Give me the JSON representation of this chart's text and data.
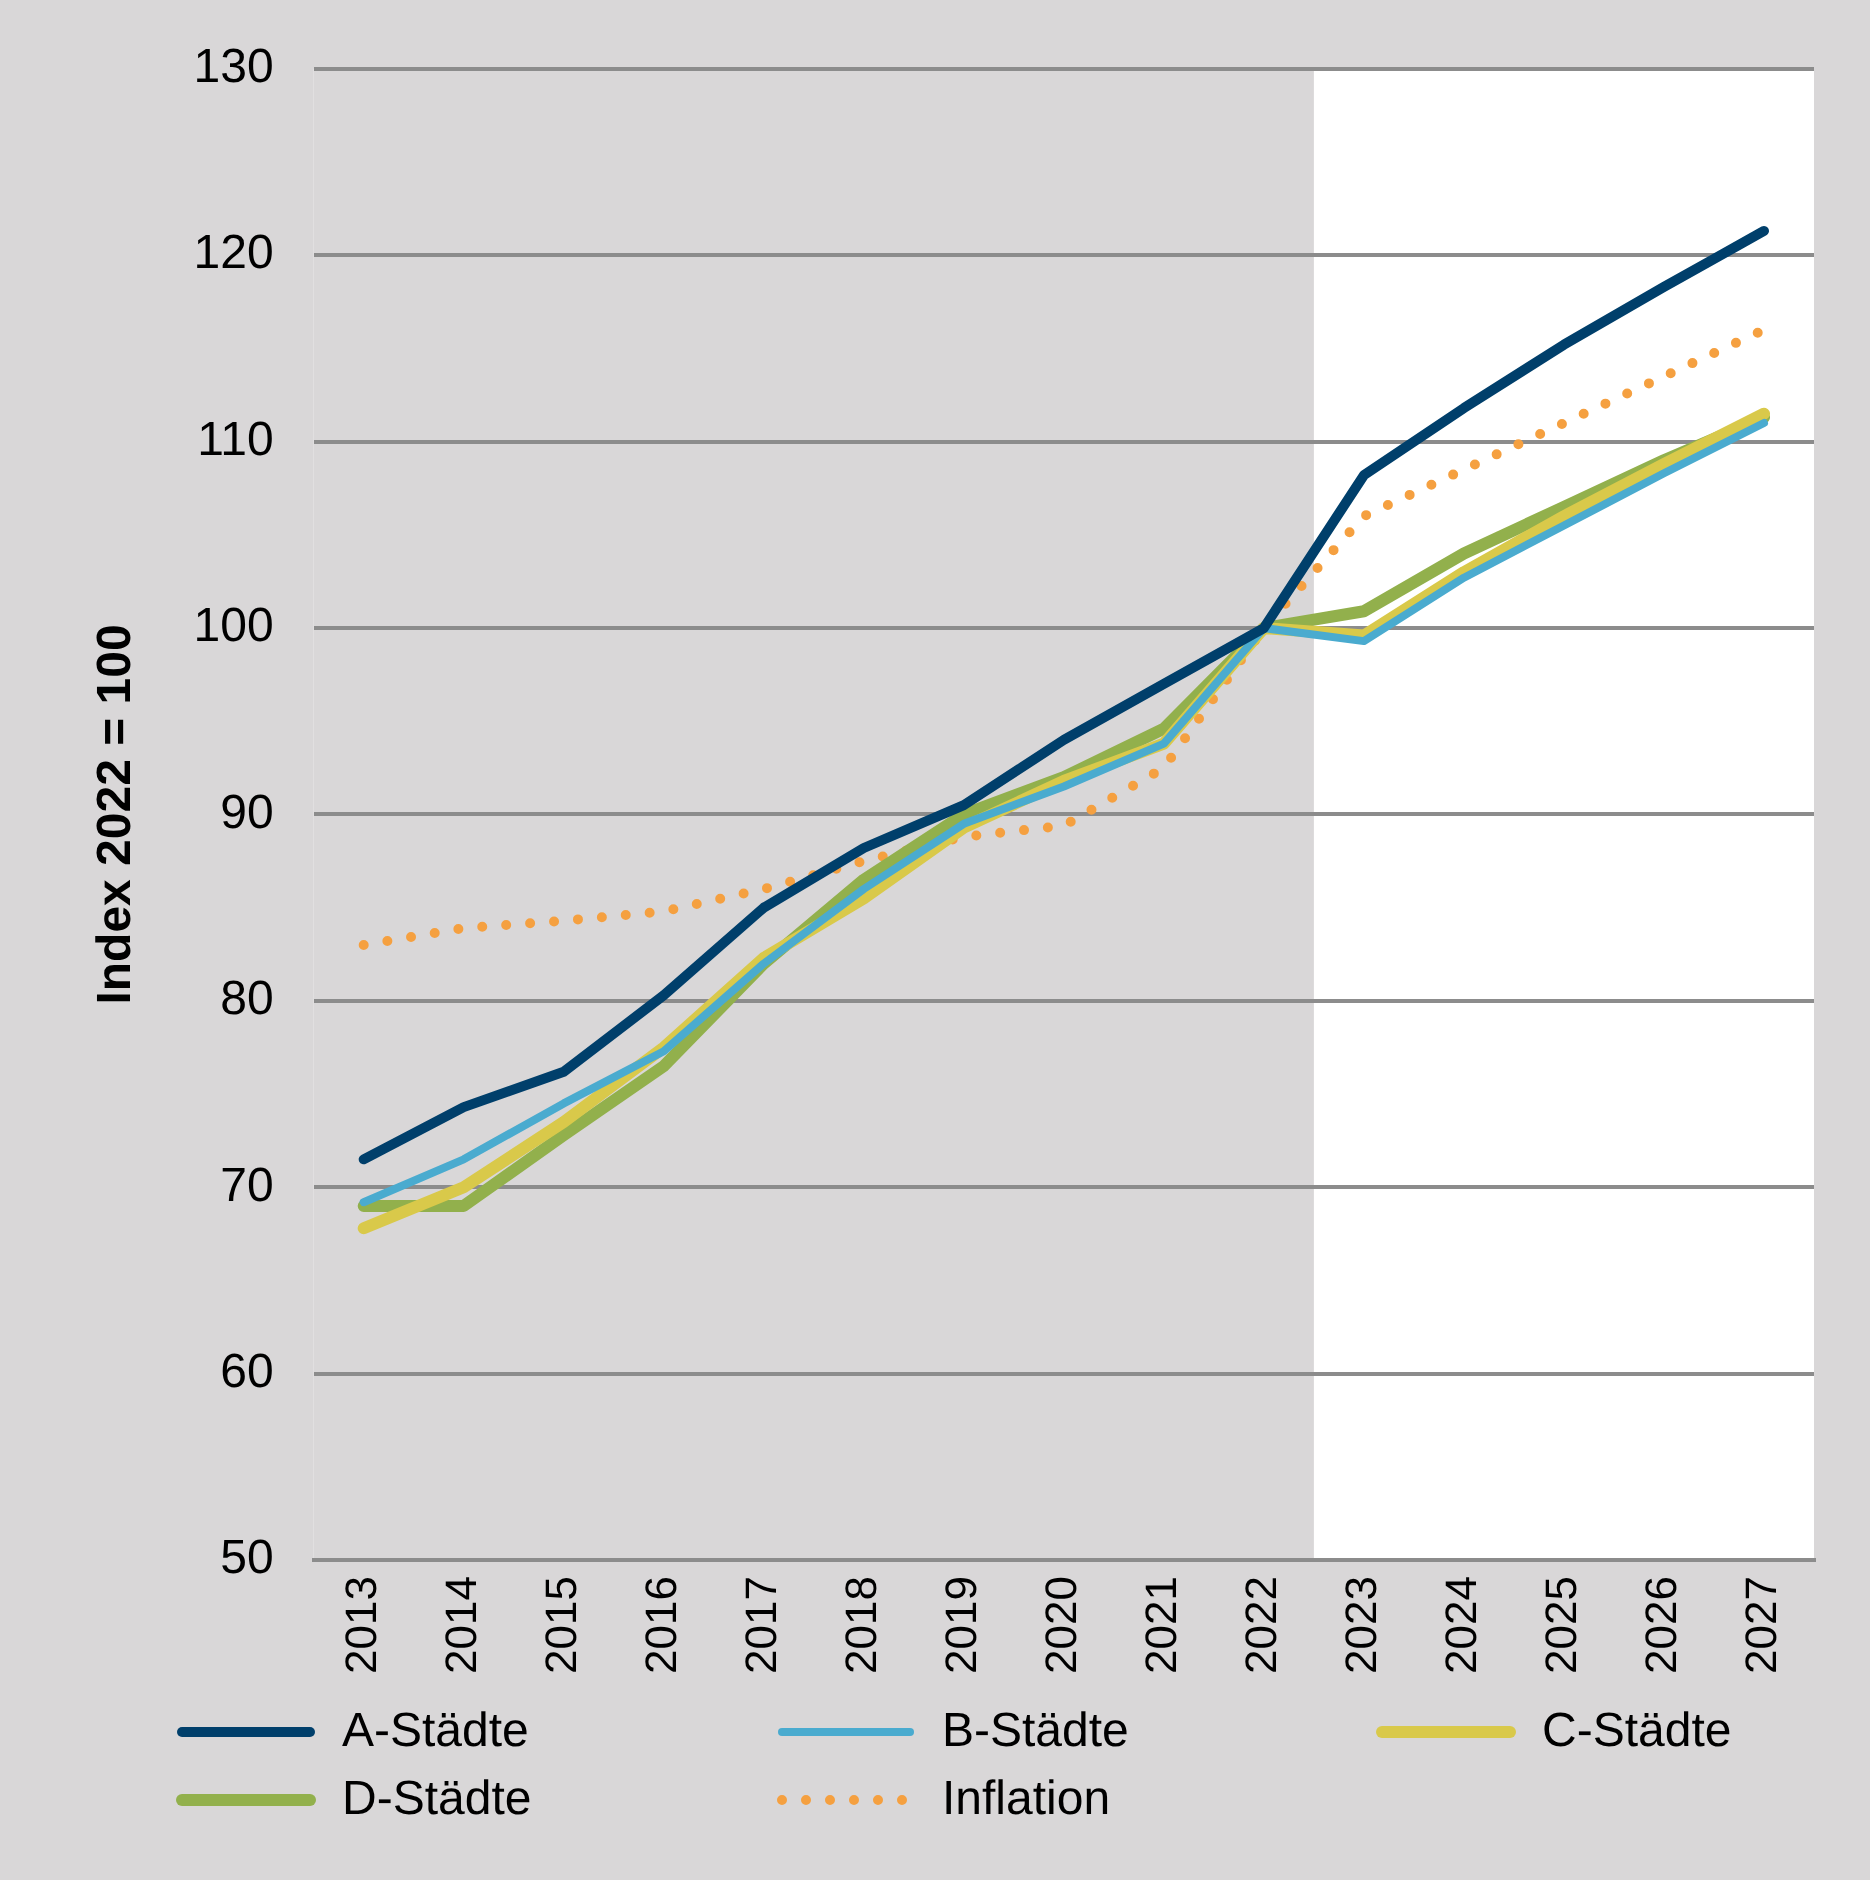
{
  "chart_data": {
    "type": "line",
    "ylabel": "Index 2022 = 100",
    "x": [
      2013,
      2014,
      2015,
      2016,
      2017,
      2018,
      2019,
      2020,
      2021,
      2022,
      2023,
      2024,
      2025,
      2026,
      2027
    ],
    "xlim": [
      2012.5,
      2027.5
    ],
    "xticks": [
      2013,
      2014,
      2015,
      2016,
      2017,
      2018,
      2019,
      2020,
      2021,
      2022,
      2023,
      2024,
      2025,
      2026,
      2027
    ],
    "ylim": [
      50,
      130
    ],
    "yticks": [
      50,
      60,
      70,
      80,
      90,
      100,
      110,
      120,
      130
    ],
    "grid": "y",
    "legend": "bottom",
    "marker": "none",
    "bands": [
      {
        "axis": "x",
        "from": 2012.5,
        "to": 2022.5,
        "color": "#d9d7d8"
      }
    ],
    "series": [
      {
        "name": "A-Städte",
        "color": "#003f6b",
        "line_style": "solid",
        "values": [
          71.5,
          74.3,
          76.2,
          80.3,
          85.0,
          88.2,
          90.5,
          94.0,
          97.0,
          100,
          108.2,
          111.8,
          115.2,
          118.3,
          121.3
        ]
      },
      {
        "name": "B-Städte",
        "color": "#4aabcf",
        "line_style": "solid",
        "values": [
          69.2,
          71.5,
          74.5,
          77.3,
          82.0,
          86.0,
          89.5,
          91.5,
          93.8,
          100,
          99.3,
          102.7,
          105.5,
          108.3,
          111.0
        ]
      },
      {
        "name": "C-Städte",
        "color": "#d9c94a",
        "line_style": "solid",
        "values": [
          67.8,
          70.0,
          73.5,
          77.5,
          82.3,
          85.5,
          89.3,
          91.8,
          93.8,
          100,
          99.6,
          103.0,
          106.0,
          108.8,
          111.5
        ]
      },
      {
        "name": "D-Städte",
        "color": "#92b04c",
        "line_style": "solid",
        "values": [
          69.0,
          69.0,
          72.8,
          76.5,
          82.0,
          86.5,
          90.0,
          92.0,
          94.6,
          100,
          100.9,
          104.0,
          106.5,
          109.0,
          111.3
        ]
      },
      {
        "name": "Inflation",
        "color": "#f5a040",
        "line_style": "dotted",
        "values": [
          83.0,
          83.9,
          84.3,
          84.8,
          86.0,
          87.5,
          88.8,
          89.4,
          92.5,
          100,
          106.0,
          108.5,
          111.0,
          113.5,
          116.0
        ]
      }
    ]
  }
}
